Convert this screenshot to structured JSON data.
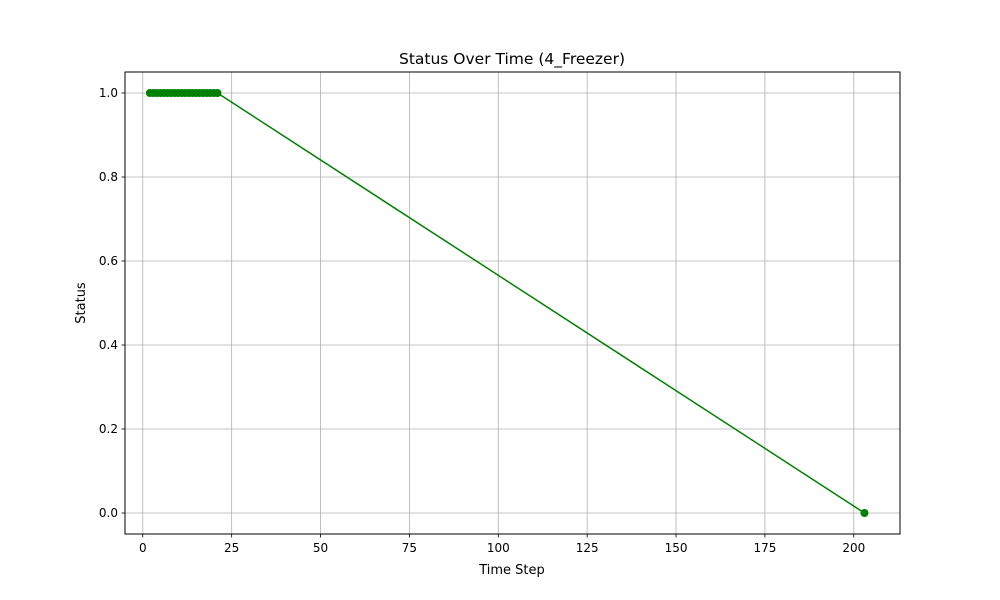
{
  "chart_data": {
    "type": "line",
    "title": "Status Over Time (4_Freezer)",
    "xlabel": "Time Step",
    "ylabel": "Status",
    "xlim": [
      -5,
      213
    ],
    "ylim": [
      -0.05,
      1.05
    ],
    "xticks": [
      0,
      25,
      50,
      75,
      100,
      125,
      150,
      175,
      200
    ],
    "xtick_labels": [
      "0",
      "25",
      "50",
      "75",
      "100",
      "125",
      "150",
      "175",
      "200"
    ],
    "yticks": [
      0.0,
      0.2,
      0.4,
      0.6,
      0.8,
      1.0
    ],
    "ytick_labels": [
      "0.0",
      "0.2",
      "0.4",
      "0.6",
      "0.8",
      "1.0"
    ],
    "grid": true,
    "series": [
      {
        "color": "#008000",
        "marker": "circle",
        "x": [
          2,
          3,
          4,
          5,
          6,
          7,
          8,
          9,
          10,
          11,
          12,
          13,
          14,
          15,
          16,
          17,
          18,
          19,
          20,
          21,
          203
        ],
        "y": [
          1,
          1,
          1,
          1,
          1,
          1,
          1,
          1,
          1,
          1,
          1,
          1,
          1,
          1,
          1,
          1,
          1,
          1,
          1,
          1,
          0
        ]
      }
    ]
  }
}
